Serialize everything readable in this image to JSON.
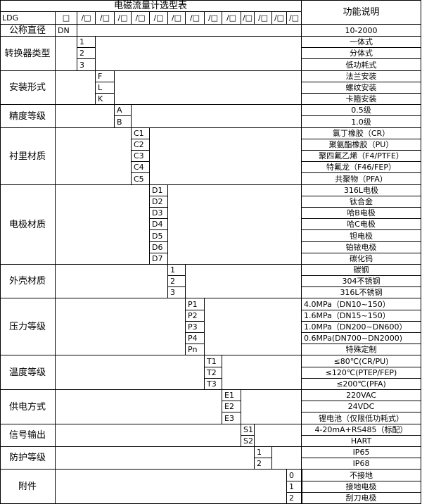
{
  "title": "电磁流量计选型表",
  "desc_header": "功能说明",
  "model_row": {
    "prefix": "LDG",
    "boxes": [
      "□",
      "/□",
      "/□",
      "/□",
      "/□",
      "/□",
      "/□",
      "/□",
      "/□",
      "/□",
      "/□",
      "/□",
      "/□",
      "/□"
    ]
  },
  "nominal": {
    "label": "公称直径",
    "code": "DN",
    "desc": "10-2000"
  },
  "groups": [
    {
      "label": "转换器类型",
      "col": 1,
      "items": [
        {
          "code": "1",
          "desc": "一体式"
        },
        {
          "code": "2",
          "desc": "分体式"
        },
        {
          "code": "3",
          "desc": "低功耗式"
        }
      ]
    },
    {
      "label": "安装形式",
      "col": 2,
      "items": [
        {
          "code": "F",
          "desc": "法兰安装"
        },
        {
          "code": "L",
          "desc": "螺纹安装"
        },
        {
          "code": "K",
          "desc": "卡箍安装"
        }
      ]
    },
    {
      "label": "精度等级",
      "col": 3,
      "items": [
        {
          "code": "A",
          "desc": "0.5级"
        },
        {
          "code": "B",
          "desc": "1.0级"
        }
      ]
    },
    {
      "label": "衬里材质",
      "col": 4,
      "items": [
        {
          "code": "C1",
          "desc": "氯丁橡胶（CR）"
        },
        {
          "code": "C2",
          "desc": "聚氨酯橡胶（PU）"
        },
        {
          "code": "C3",
          "desc": "聚四氟乙烯（F4/PTFE）"
        },
        {
          "code": "C4",
          "desc": "特氟龙（F46/FEP）"
        },
        {
          "code": "C5",
          "desc": "共聚物（PFA）"
        }
      ]
    },
    {
      "label": "电极材质",
      "col": 5,
      "items": [
        {
          "code": "D1",
          "desc": "316L电极"
        },
        {
          "code": "D2",
          "desc": "钛合金"
        },
        {
          "code": "D3",
          "desc": "哈B电极"
        },
        {
          "code": "D4",
          "desc": "哈C电极"
        },
        {
          "code": "D5",
          "desc": "钽电极"
        },
        {
          "code": "D6",
          "desc": "铂铱电极"
        },
        {
          "code": "D7",
          "desc": "碳化钨"
        }
      ]
    },
    {
      "label": "外壳材质",
      "col": 6,
      "items": [
        {
          "code": "1",
          "desc": "碳钢"
        },
        {
          "code": "2",
          "desc": "304不锈钢"
        },
        {
          "code": "3",
          "desc": "316L不锈钢"
        }
      ]
    },
    {
      "label": "压力等级",
      "col": 7,
      "left": true,
      "items": [
        {
          "code": "P1",
          "desc": "4.0MPa（DN10~150）"
        },
        {
          "code": "P2",
          "desc": "1.6MPa（DN15~150）"
        },
        {
          "code": "P3",
          "desc": "1.0MPa（DN200~DN600）"
        },
        {
          "code": "P4",
          "desc": "0.6MPa(DN700~DN2000)"
        },
        {
          "code": "Pn",
          "desc": "特殊定制",
          "center": true
        }
      ]
    },
    {
      "label": "温度等级",
      "col": 8,
      "items": [
        {
          "code": "T1",
          "desc": "≤80℃(CR/PU)"
        },
        {
          "code": "T2",
          "desc": "≤120℃(PTEP/FEP)"
        },
        {
          "code": "T3",
          "desc": "≤200℃(PFA)"
        }
      ]
    },
    {
      "label": "供电方式",
      "col": 9,
      "items": [
        {
          "code": "E1",
          "desc": "220VAC"
        },
        {
          "code": "E2",
          "desc": "24VDC"
        },
        {
          "code": "E3",
          "desc": "锂电池（仅限低功耗式）"
        }
      ]
    },
    {
      "label": "信号输出",
      "col": 10,
      "items": [
        {
          "code": "S1",
          "desc": "4-20mA+RS485（标配）"
        },
        {
          "code": "S2",
          "desc": "HART"
        }
      ]
    },
    {
      "label": "防护等级",
      "col": 11,
      "items": [
        {
          "code": "1",
          "desc": "IP65"
        },
        {
          "code": "2",
          "desc": "IP68"
        }
      ]
    },
    {
      "label": "附件",
      "col": 13,
      "items": [
        {
          "code": "0",
          "desc": "不接地"
        },
        {
          "code": "1",
          "desc": "接地电极"
        },
        {
          "code": "2",
          "desc": "刮刀电极"
        }
      ]
    }
  ]
}
